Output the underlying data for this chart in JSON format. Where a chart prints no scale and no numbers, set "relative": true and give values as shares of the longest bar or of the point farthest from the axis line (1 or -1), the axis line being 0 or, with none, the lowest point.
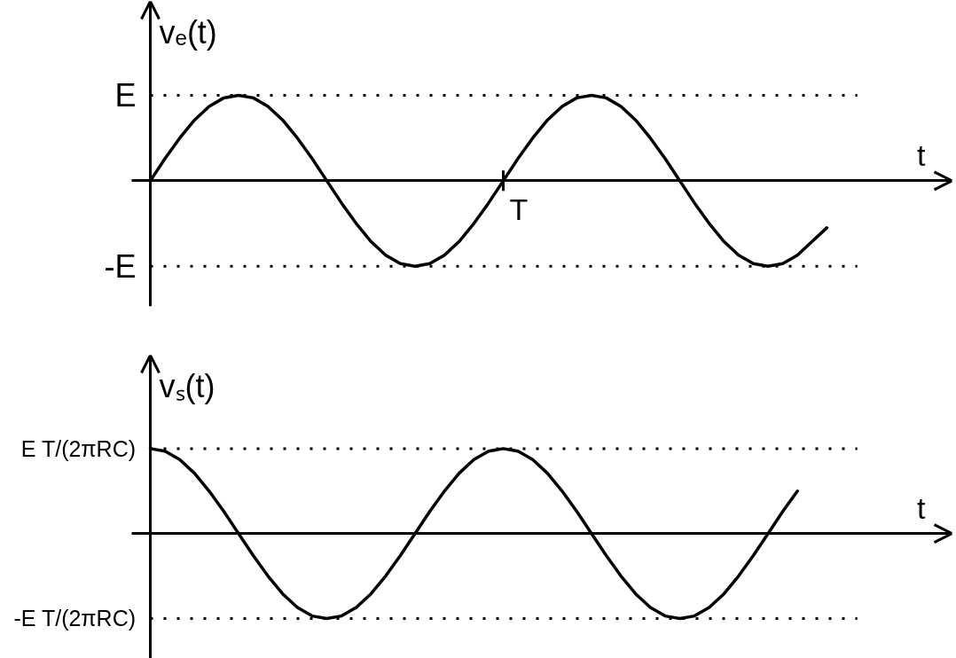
{
  "chart_data": [
    {
      "type": "line",
      "relative": true,
      "xlabel": "t",
      "ylabel": "vₑ(t)",
      "annotations": [
        "T"
      ],
      "ref_lines": [
        {
          "axis": "y",
          "value": 1,
          "label": "E",
          "line_style": "dotted"
        },
        {
          "axis": "y",
          "value": -1,
          "label": "-E",
          "line_style": "dotted"
        }
      ],
      "categories": [
        null,
        null,
        null,
        null,
        null,
        null,
        null,
        null,
        null,
        null,
        null,
        null,
        null,
        null,
        null,
        null,
        null,
        null,
        null,
        null,
        null,
        null,
        null,
        null,
        null,
        null,
        null,
        null,
        null,
        null,
        null,
        null,
        null,
        null,
        null,
        null,
        null,
        null,
        null,
        null,
        null,
        null,
        null,
        null,
        null,
        null,
        null
      ],
      "series": [
        {
          "color": "#000000",
          "values": [
            0,
            0.26,
            0.5,
            0.71,
            0.87,
            0.97,
            1,
            0.97,
            0.87,
            0.71,
            0.5,
            0.26,
            0,
            -0.26,
            -0.5,
            -0.71,
            -0.87,
            -0.97,
            -1,
            -0.97,
            -0.87,
            -0.71,
            -0.5,
            -0.26,
            0,
            0.26,
            0.5,
            0.71,
            0.87,
            0.97,
            1,
            0.97,
            0.87,
            0.71,
            0.5,
            0.26,
            0,
            -0.26,
            -0.5,
            -0.71,
            -0.87,
            -0.97,
            -1,
            -0.97,
            -0.87,
            -0.71,
            -0.55
          ]
        }
      ]
    },
    {
      "type": "line",
      "relative": true,
      "xlabel": "t",
      "ylabel": "vₛ(t)",
      "ref_lines": [
        {
          "axis": "y",
          "value": 1,
          "label": "E T/(2πRC)",
          "line_style": "dotted"
        },
        {
          "axis": "y",
          "value": -1,
          "label": "-E T/(2πRC)",
          "line_style": "dotted"
        }
      ],
      "categories": [
        null,
        null,
        null,
        null,
        null,
        null,
        null,
        null,
        null,
        null,
        null,
        null,
        null,
        null,
        null,
        null,
        null,
        null,
        null,
        null,
        null,
        null,
        null,
        null,
        null,
        null,
        null,
        null,
        null,
        null,
        null,
        null,
        null,
        null,
        null,
        null,
        null,
        null,
        null,
        null,
        null,
        null,
        null,
        null,
        null
      ],
      "series": [
        {
          "color": "#000000",
          "values": [
            1,
            0.97,
            0.87,
            0.71,
            0.5,
            0.26,
            0,
            -0.26,
            -0.5,
            -0.71,
            -0.87,
            -0.97,
            -1,
            -0.97,
            -0.87,
            -0.71,
            -0.5,
            -0.26,
            0,
            0.26,
            0.5,
            0.71,
            0.87,
            0.97,
            1,
            0.97,
            0.87,
            0.71,
            0.5,
            0.26,
            0,
            -0.26,
            -0.5,
            -0.71,
            -0.87,
            -0.97,
            -1,
            -0.97,
            -0.87,
            -0.71,
            -0.5,
            -0.26,
            0,
            0.26,
            0.5
          ]
        }
      ]
    }
  ]
}
